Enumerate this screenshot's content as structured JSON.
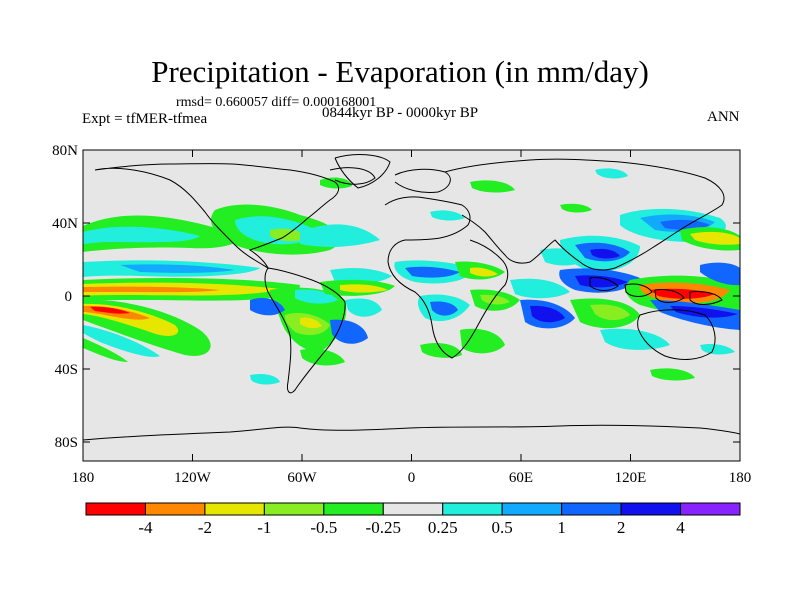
{
  "title": "Precipitation - Evaporation (in mm/day)",
  "stats": "rmsd= 0.660057 diff= 0.000168001",
  "experiment": "Expt = tfMER-tfmea",
  "period": "0844kyr BP - 0000kyr BP",
  "season": "ANN",
  "axes": {
    "lat_ticks": [
      "80N",
      "40N",
      "0",
      "40S",
      "80S"
    ],
    "lon_ticks": [
      "180",
      "120W",
      "60W",
      "0",
      "60E",
      "120E",
      "180"
    ]
  },
  "colorbar": {
    "colors": [
      "#ff0000",
      "#ff8800",
      "#e6e600",
      "#88ee22",
      "#22ee22",
      "#e6e6e6",
      "#22eedd",
      "#11aaff",
      "#1166ff",
      "#1111ee",
      "#8822ff"
    ],
    "labels": [
      "-4",
      "-2",
      "-1",
      "-0.5",
      "-0.25",
      "0.25",
      "0.5",
      "1",
      "2",
      "4"
    ]
  },
  "colors": {
    "background_field": "#e6e6e6",
    "coastline": "#000000"
  }
}
